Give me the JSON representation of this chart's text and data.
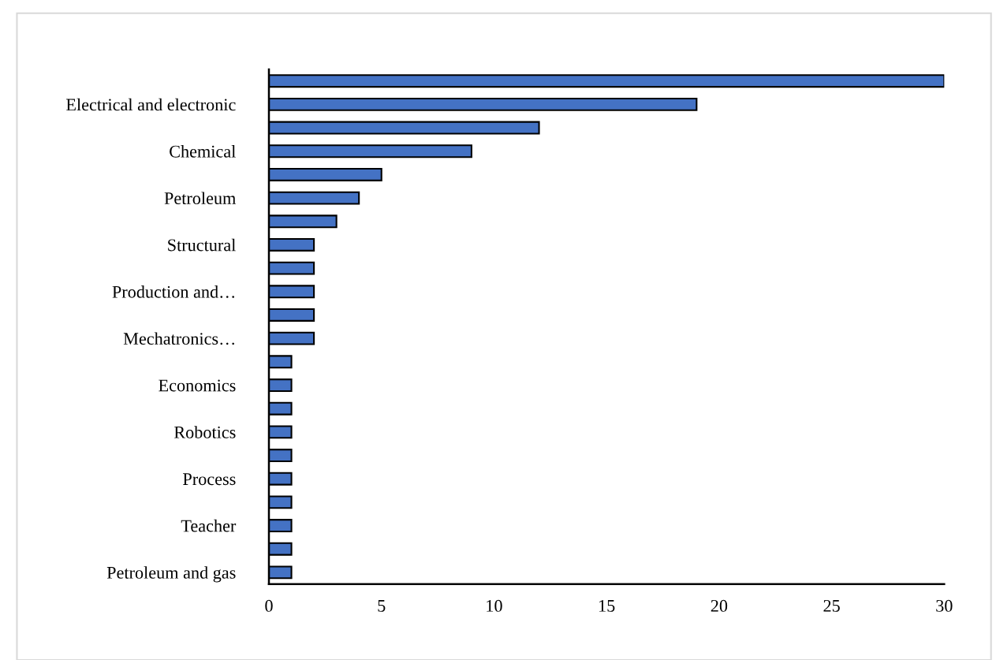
{
  "chart_data": {
    "type": "bar",
    "orientation": "horizontal",
    "categories": [
      null,
      "Electrical and electronic",
      null,
      "Chemical",
      null,
      "Petroleum",
      null,
      "Structural",
      null,
      "Production and…",
      null,
      "Mechatronics…",
      null,
      "Economics",
      null,
      "Robotics",
      null,
      "Process",
      null,
      "Teacher",
      null,
      "Petroleum and gas"
    ],
    "values": [
      30,
      19,
      12,
      9,
      5,
      4,
      3,
      2,
      2,
      2,
      2,
      2,
      1,
      1,
      1,
      1,
      1,
      1,
      1,
      1,
      1,
      1
    ],
    "color": "#4472c4",
    "xlim": [
      0,
      30
    ],
    "xticks": [
      0,
      5,
      10,
      15,
      20,
      25,
      30
    ],
    "grid": false
  }
}
